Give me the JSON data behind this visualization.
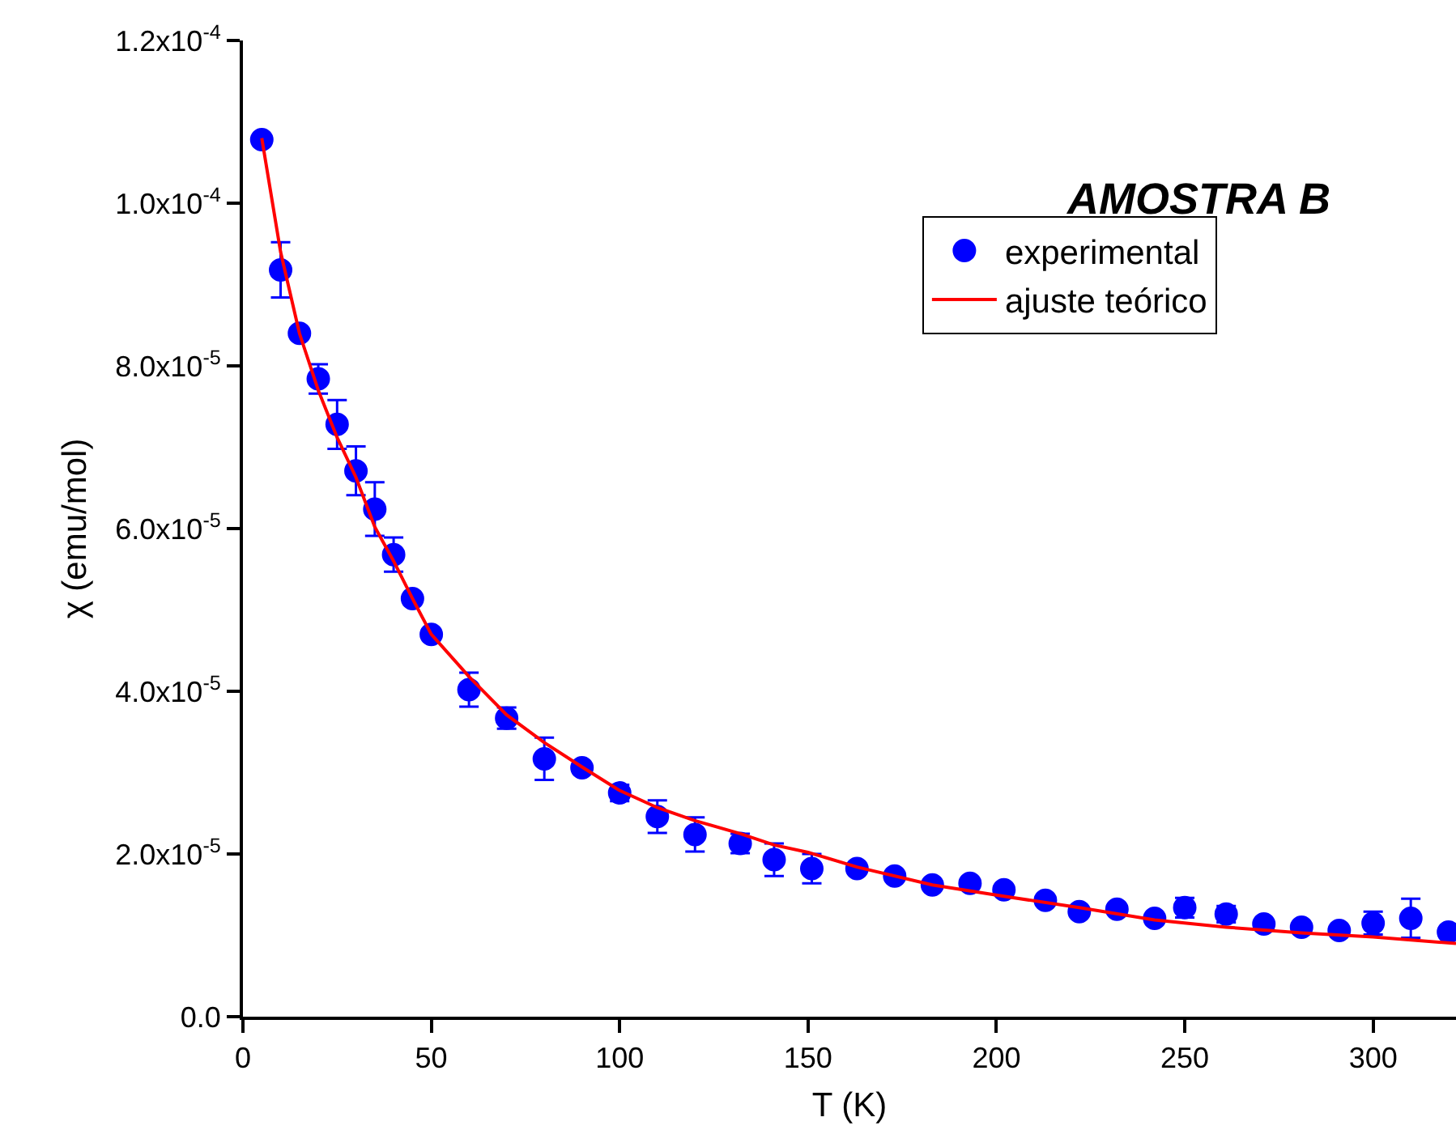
{
  "chart_data": {
    "type": "scatter",
    "xlabel": "T (K)",
    "ylabel": "χ (emu/mol)",
    "annotations": [
      "AMOSTRA B"
    ],
    "xlim": [
      0,
      322
    ],
    "xticks": [
      0,
      50,
      100,
      150,
      200,
      250,
      300
    ],
    "ylim": [
      0,
      0.00012
    ],
    "yticks": [
      {
        "value": 0,
        "label": "0.0"
      },
      {
        "value": 2e-05,
        "label": "2.0x10$^{-5}$"
      },
      {
        "value": 4e-05,
        "label": "4.0x10$^{-5}$"
      },
      {
        "value": 6e-05,
        "label": "6.0x10$^{-5}$"
      },
      {
        "value": 8e-05,
        "label": "8.0x10$^{-5}$"
      },
      {
        "value": 0.0001,
        "label": "1.0x10$^{-4}$"
      },
      {
        "value": 0.00012,
        "label": "1.2x10$^{-4}$"
      }
    ],
    "grid": false,
    "legend": "top right",
    "series": [
      {
        "name": "experimental",
        "marker": "circle",
        "color": "#0000ff",
        "x": [
          5,
          10,
          15,
          20,
          25,
          30,
          35,
          40,
          45,
          50,
          60,
          70,
          80,
          90,
          100,
          110,
          120,
          132,
          141,
          151,
          163,
          173,
          183,
          193,
          202,
          213,
          222,
          232,
          242,
          250,
          261,
          271,
          281,
          291,
          300,
          310,
          320
        ],
        "values": [
          0.0001078,
          9.18e-05,
          8.4e-05,
          7.84e-05,
          7.28e-05,
          6.71e-05,
          6.24e-05,
          5.68e-05,
          5.14e-05,
          4.7e-05,
          4.02e-05,
          3.67e-05,
          3.17e-05,
          3.06e-05,
          2.75e-05,
          2.46e-05,
          2.24e-05,
          2.13e-05,
          1.93e-05,
          1.82e-05,
          1.82e-05,
          1.73e-05,
          1.62e-05,
          1.64e-05,
          1.56e-05,
          1.43e-05,
          1.29e-05,
          1.32e-05,
          1.21e-05,
          1.34e-05,
          1.26e-05,
          1.14e-05,
          1.1e-05,
          1.06e-05,
          1.15e-05,
          1.21e-05,
          1.04e-05
        ],
        "errors": [
          5e-07,
          3.4e-06,
          5e-07,
          1.8e-06,
          3e-06,
          3e-06,
          3.3e-06,
          2.1e-06,
          5e-07,
          5e-07,
          2.1e-06,
          1.3e-06,
          2.6e-06,
          6e-07,
          1e-06,
          2e-06,
          2.1e-06,
          1.2e-06,
          2e-06,
          1.8e-06,
          5e-07,
          5e-07,
          5e-07,
          5e-07,
          5e-07,
          5e-07,
          5e-07,
          5e-07,
          5e-07,
          1.2e-06,
          1e-06,
          5e-07,
          5e-07,
          5e-07,
          1.4e-06,
          2.4e-06,
          6e-07
        ]
      },
      {
        "name": "ajuste teórico",
        "type": "line",
        "color": "#ff0000",
        "line_style": "solid",
        "x": [
          5,
          10,
          15,
          20,
          25,
          30,
          35,
          40,
          45,
          50,
          60,
          70,
          80,
          90,
          100,
          110,
          120,
          132,
          141,
          150,
          163,
          183,
          202,
          222,
          242,
          261,
          281,
          300,
          322
        ],
        "values": [
          0.000108,
          9.4e-05,
          8.4e-05,
          7.7e-05,
          7.12e-05,
          6.63e-05,
          6.02e-05,
          5.6e-05,
          5.14e-05,
          4.7e-05,
          4.18e-05,
          3.71e-05,
          3.37e-05,
          3.07e-05,
          2.78e-05,
          2.57e-05,
          2.41e-05,
          2.25e-05,
          2.11e-05,
          2.02e-05,
          1.84e-05,
          1.62e-05,
          1.48e-05,
          1.34e-05,
          1.19e-05,
          1.1e-05,
          1.03e-05,
          9.8e-06,
          9e-06
        ]
      }
    ]
  }
}
